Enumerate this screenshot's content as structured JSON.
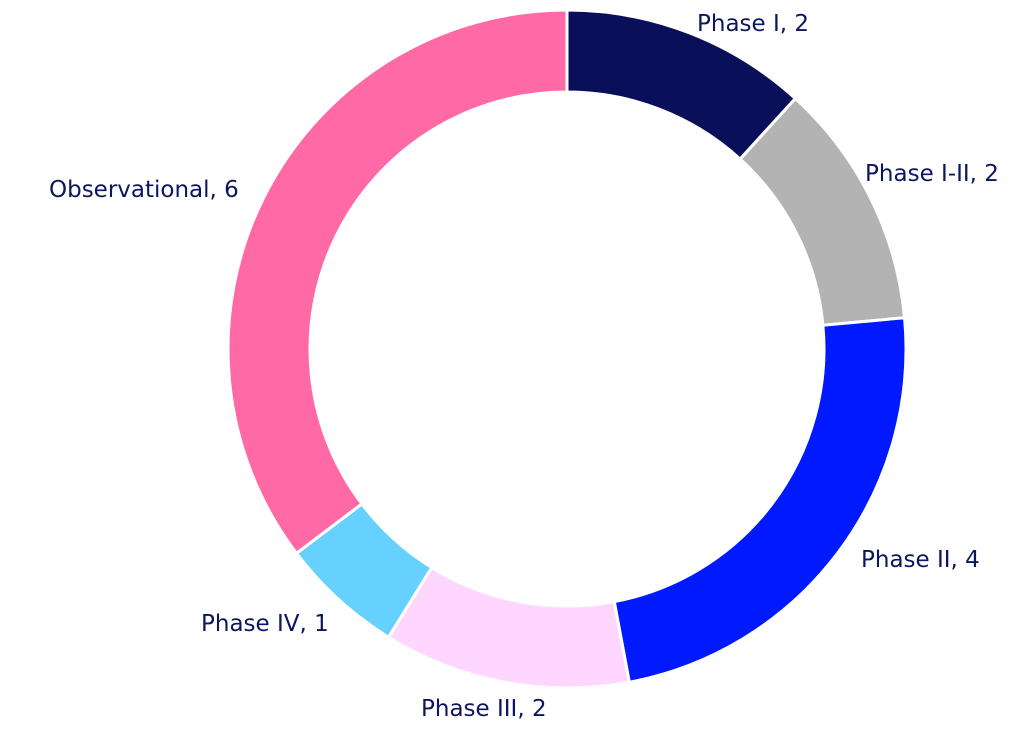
{
  "chart_data": {
    "type": "donut",
    "labels": [
      "Phase I, 2",
      "Phase I-II, 2",
      "Phase II, 4",
      "Phase III, 2",
      "Phase IV, 1",
      "Observational, 6"
    ],
    "values": [
      2,
      2,
      4,
      2,
      1,
      6
    ],
    "colors": [
      "#0a0f5a",
      "#b3b3b3",
      "#0019ff",
      "#ffd6ff",
      "#66d1ff",
      "#ff69a6"
    ]
  }
}
